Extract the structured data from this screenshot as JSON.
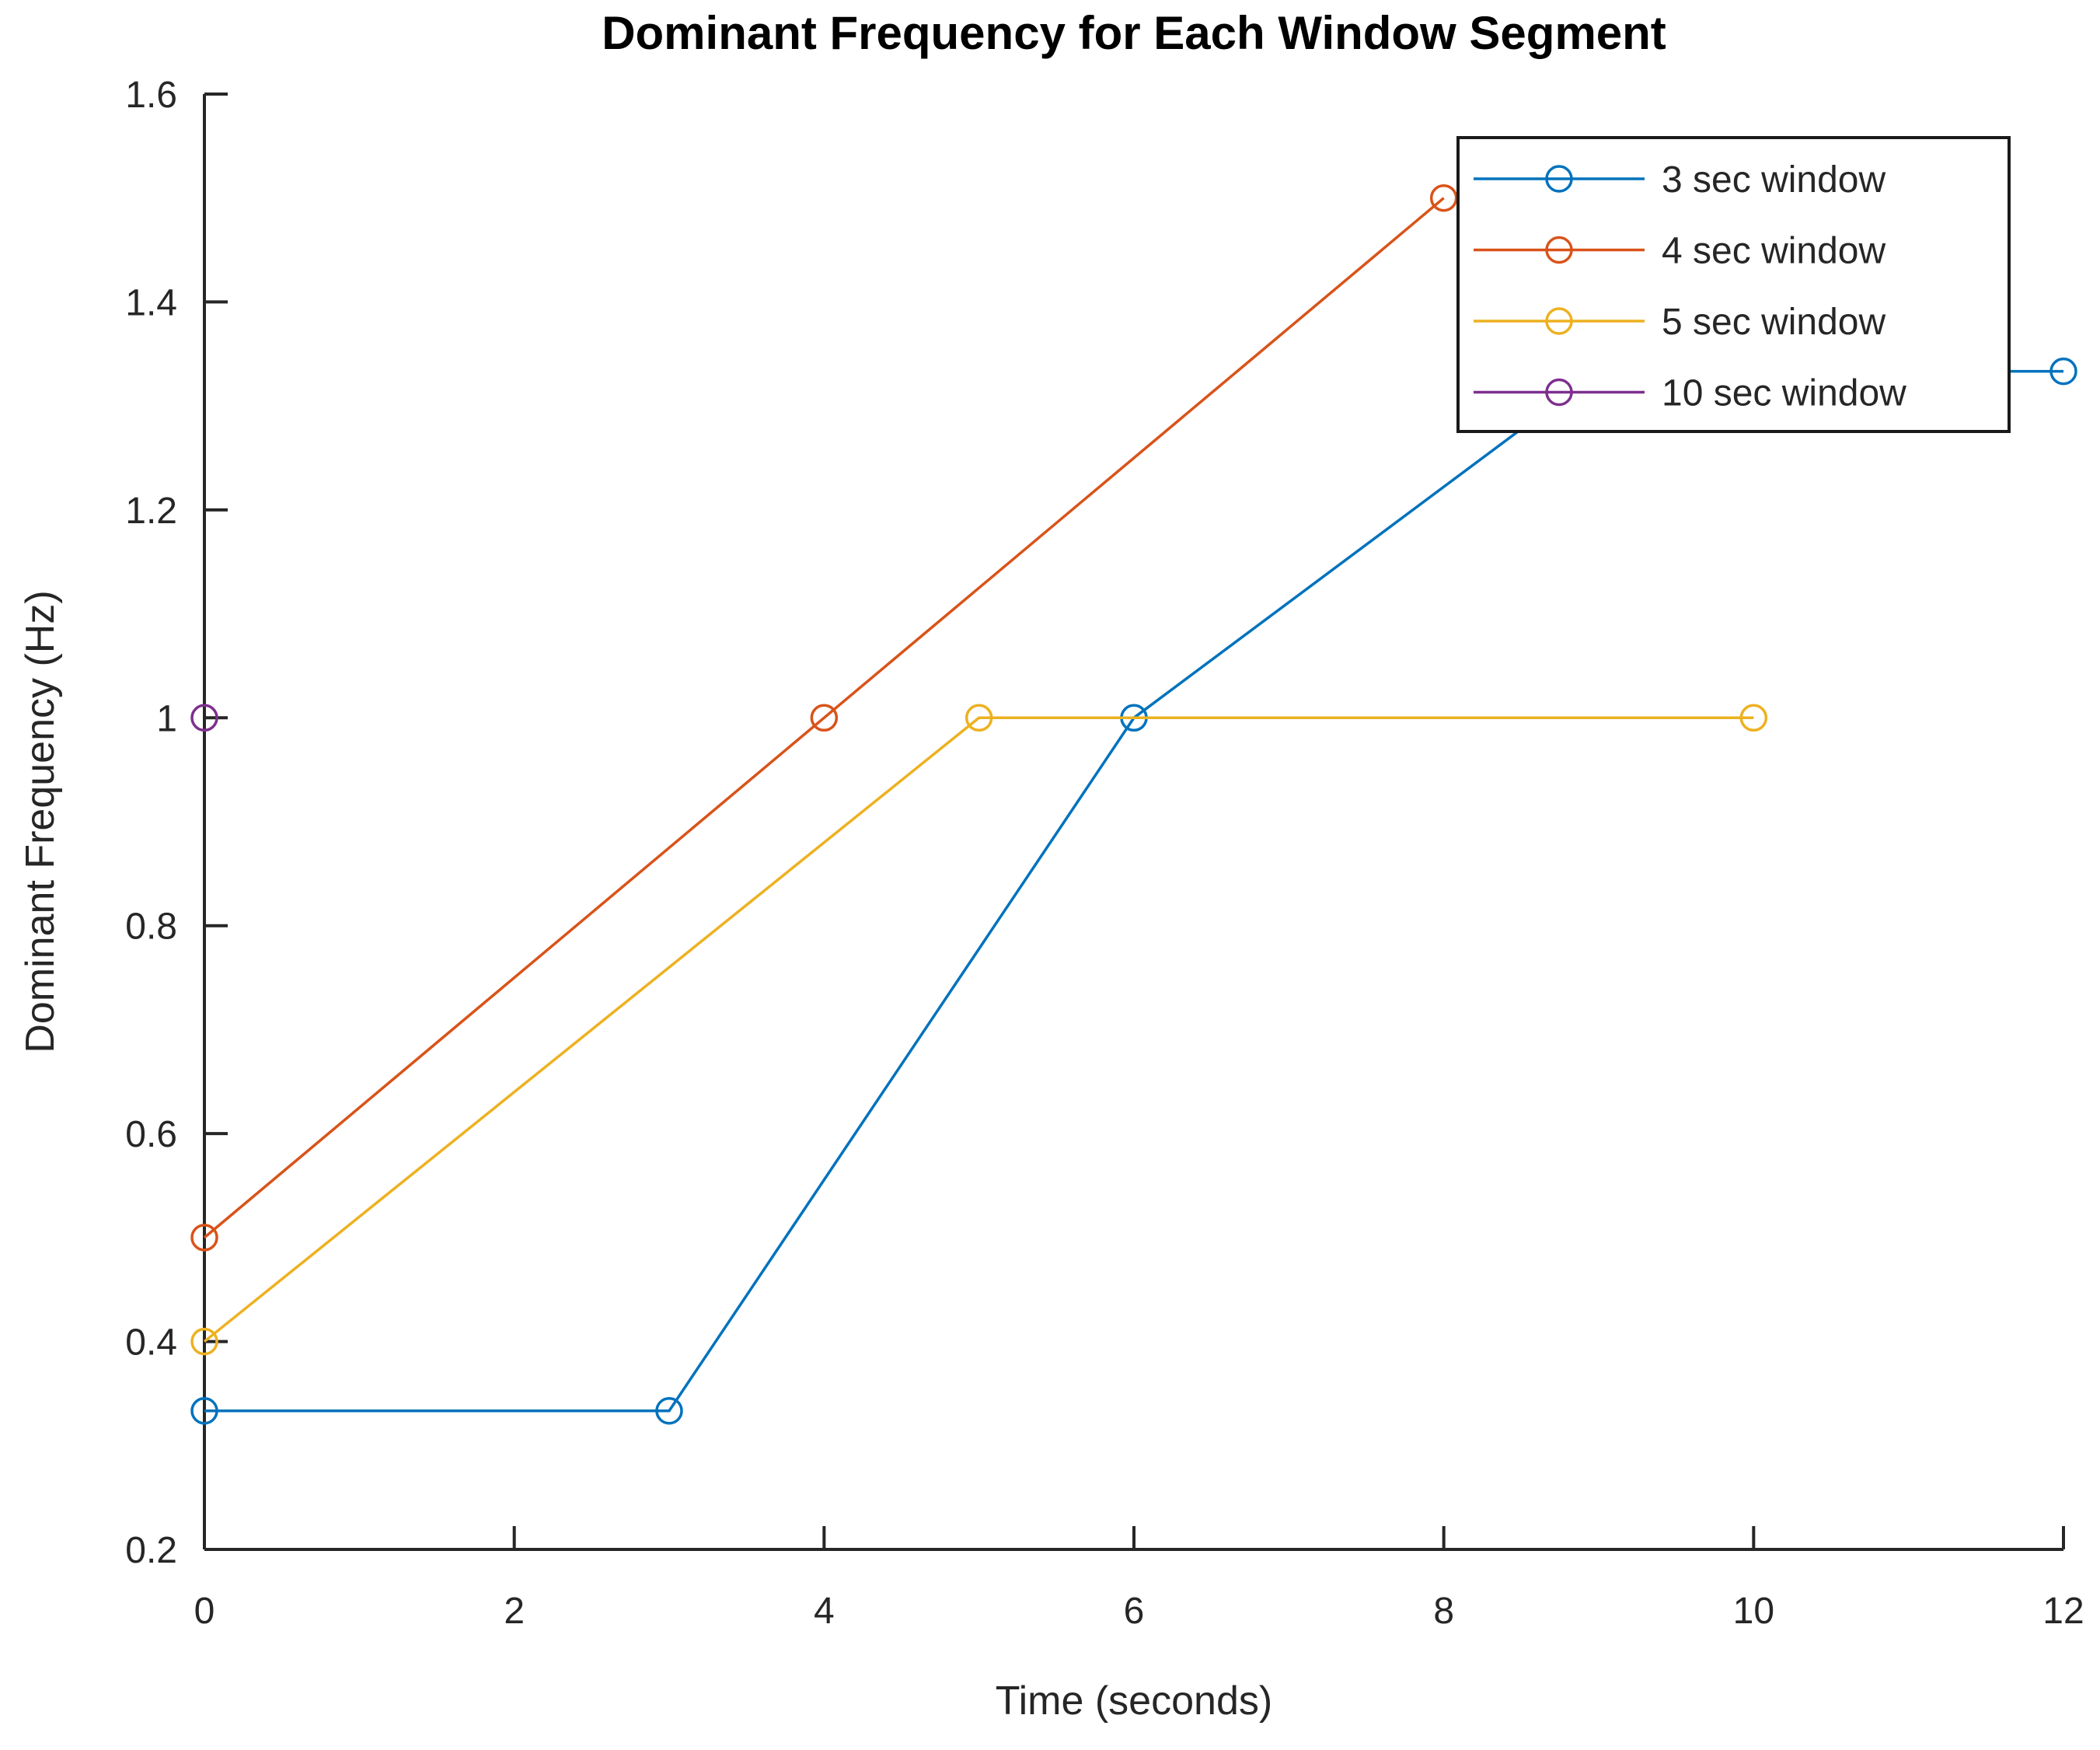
{
  "chart_data": {
    "type": "line",
    "title": "Dominant Frequency for Each Window Segment",
    "xlabel": "Time (seconds)",
    "ylabel": "Dominant Frequency (Hz)",
    "xlim": [
      0,
      12
    ],
    "ylim": [
      0.2,
      1.6
    ],
    "xticks": [
      0,
      2,
      4,
      6,
      8,
      10,
      12
    ],
    "yticks": [
      0.2,
      0.4,
      0.6,
      0.8,
      1,
      1.2,
      1.4,
      1.6
    ],
    "grid": false,
    "marker": "circle",
    "legend_position": "top-right",
    "axis_color": "#262626",
    "background_color": "#ffffff",
    "series": [
      {
        "name": "3 sec window",
        "color": "#0072BD",
        "x": [
          0,
          3,
          6,
          9,
          12
        ],
        "y": [
          0.3333,
          0.3333,
          1,
          1.3333,
          1.3333
        ]
      },
      {
        "name": "4 sec window",
        "color": "#D95319",
        "x": [
          0,
          4,
          8
        ],
        "y": [
          0.5,
          1,
          1.5
        ]
      },
      {
        "name": "5 sec window",
        "color": "#EDB120",
        "x": [
          0,
          5,
          10
        ],
        "y": [
          0.4,
          1,
          1
        ]
      },
      {
        "name": "10 sec window",
        "color": "#7E2F8E",
        "x": [
          0
        ],
        "y": [
          1
        ]
      }
    ]
  }
}
